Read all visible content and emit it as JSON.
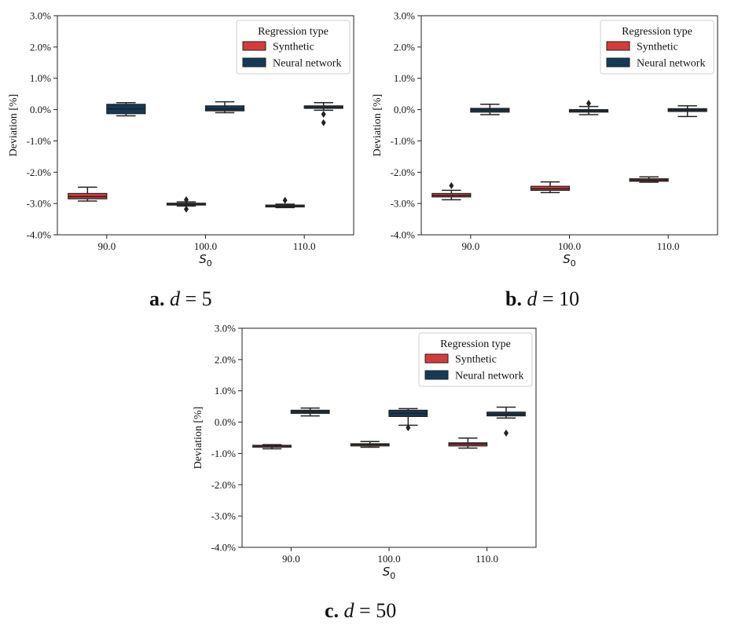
{
  "colors": {
    "synthetic": "#d63b3b",
    "neural_network": "#143a57",
    "line": "#222222"
  },
  "chart_data": [
    {
      "id": "a",
      "type": "box",
      "caption": {
        "prefix": "a.",
        "var": "d",
        "rest": " = 5"
      },
      "xlabel": "S0",
      "ylabel": "Deviation [%]",
      "ylim": [
        -4.0,
        3.0
      ],
      "yticks": [
        "-4.0%",
        "-3.0%",
        "-2.0%",
        "-1.0%",
        "0.0%",
        "1.0%",
        "2.0%",
        "3.0%"
      ],
      "categories": [
        "90.0",
        "100.0",
        "110.0"
      ],
      "legend": {
        "title": "Regression type",
        "position": "top-right",
        "items": [
          "Synthetic",
          "Neural network"
        ]
      },
      "series": [
        {
          "name": "Synthetic",
          "boxes": [
            {
              "whislo": -2.92,
              "q1": -2.85,
              "med": -2.78,
              "q3": -2.68,
              "whishi": -2.48,
              "fliers": []
            },
            {
              "whislo": -3.08,
              "q1": -3.05,
              "med": -3.02,
              "q3": -2.99,
              "whishi": -2.95,
              "fliers": [
                -2.88,
                -3.18
              ]
            },
            {
              "whislo": -3.13,
              "q1": -3.11,
              "med": -3.08,
              "q3": -3.05,
              "whishi": -3.02,
              "fliers": [
                -2.9
              ]
            }
          ]
        },
        {
          "name": "Neural network",
          "boxes": [
            {
              "whislo": -0.2,
              "q1": -0.13,
              "med": 0.02,
              "q3": 0.17,
              "whishi": 0.22,
              "fliers": []
            },
            {
              "whislo": -0.1,
              "q1": -0.04,
              "med": 0.02,
              "q3": 0.12,
              "whishi": 0.25,
              "fliers": []
            },
            {
              "whislo": -0.02,
              "q1": 0.04,
              "med": 0.07,
              "q3": 0.12,
              "whishi": 0.22,
              "fliers": [
                -0.15,
                -0.42
              ]
            }
          ]
        }
      ]
    },
    {
      "id": "b",
      "type": "box",
      "caption": {
        "prefix": "b.",
        "var": "d",
        "rest": " = 10"
      },
      "xlabel": "S0",
      "ylabel": "Deviation [%]",
      "ylim": [
        -4.0,
        3.0
      ],
      "yticks": [
        "-4.0%",
        "-3.0%",
        "-2.0%",
        "-1.0%",
        "0.0%",
        "1.0%",
        "2.0%",
        "3.0%"
      ],
      "categories": [
        "90.0",
        "100.0",
        "110.0"
      ],
      "legend": {
        "title": "Regression type",
        "position": "top-right",
        "items": [
          "Synthetic",
          "Neural network"
        ]
      },
      "series": [
        {
          "name": "Synthetic",
          "boxes": [
            {
              "whislo": -2.88,
              "q1": -2.79,
              "med": -2.74,
              "q3": -2.68,
              "whishi": -2.58,
              "fliers": [
                -2.43
              ]
            },
            {
              "whislo": -2.65,
              "q1": -2.58,
              "med": -2.53,
              "q3": -2.45,
              "whishi": -2.31,
              "fliers": []
            },
            {
              "whislo": -2.32,
              "q1": -2.29,
              "med": -2.25,
              "q3": -2.21,
              "whishi": -2.15,
              "fliers": []
            }
          ]
        },
        {
          "name": "Neural network",
          "boxes": [
            {
              "whislo": -0.16,
              "q1": -0.08,
              "med": -0.01,
              "q3": 0.04,
              "whishi": 0.17,
              "fliers": []
            },
            {
              "whislo": -0.16,
              "q1": -0.08,
              "med": -0.04,
              "q3": 0.0,
              "whishi": 0.1,
              "fliers": [
                0.2
              ]
            },
            {
              "whislo": -0.22,
              "q1": -0.06,
              "med": -0.01,
              "q3": 0.03,
              "whishi": 0.12,
              "fliers": []
            }
          ]
        }
      ]
    },
    {
      "id": "c",
      "type": "box",
      "caption": {
        "prefix": "c.",
        "var": "d",
        "rest": " = 50"
      },
      "xlabel": "S0",
      "ylabel": "Deviation [%]",
      "ylim": [
        -4.0,
        3.0
      ],
      "yticks": [
        "-4.0%",
        "-3.0%",
        "-2.0%",
        "-1.0%",
        "0.0%",
        "1.0%",
        "2.0%",
        "3.0%"
      ],
      "categories": [
        "90.0",
        "100.0",
        "110.0"
      ],
      "legend": {
        "title": "Regression type",
        "position": "top-right",
        "items": [
          "Synthetic",
          "Neural network"
        ]
      },
      "series": [
        {
          "name": "Synthetic",
          "boxes": [
            {
              "whislo": -0.85,
              "q1": -0.8,
              "med": -0.76,
              "q3": -0.74,
              "whishi": -0.72,
              "fliers": []
            },
            {
              "whislo": -0.8,
              "q1": -0.76,
              "med": -0.72,
              "q3": -0.69,
              "whishi": -0.62,
              "fliers": []
            },
            {
              "whislo": -0.83,
              "q1": -0.76,
              "med": -0.7,
              "q3": -0.66,
              "whishi": -0.51,
              "fliers": []
            }
          ]
        },
        {
          "name": "Neural network",
          "boxes": [
            {
              "whislo": 0.2,
              "q1": 0.28,
              "med": 0.33,
              "q3": 0.38,
              "whishi": 0.45,
              "fliers": []
            },
            {
              "whislo": -0.1,
              "q1": 0.18,
              "med": 0.28,
              "q3": 0.38,
              "whishi": 0.43,
              "fliers": [
                -0.18
              ]
            },
            {
              "whislo": 0.13,
              "q1": 0.2,
              "med": 0.25,
              "q3": 0.32,
              "whishi": 0.48,
              "fliers": [
                -0.35
              ]
            }
          ]
        }
      ]
    }
  ]
}
